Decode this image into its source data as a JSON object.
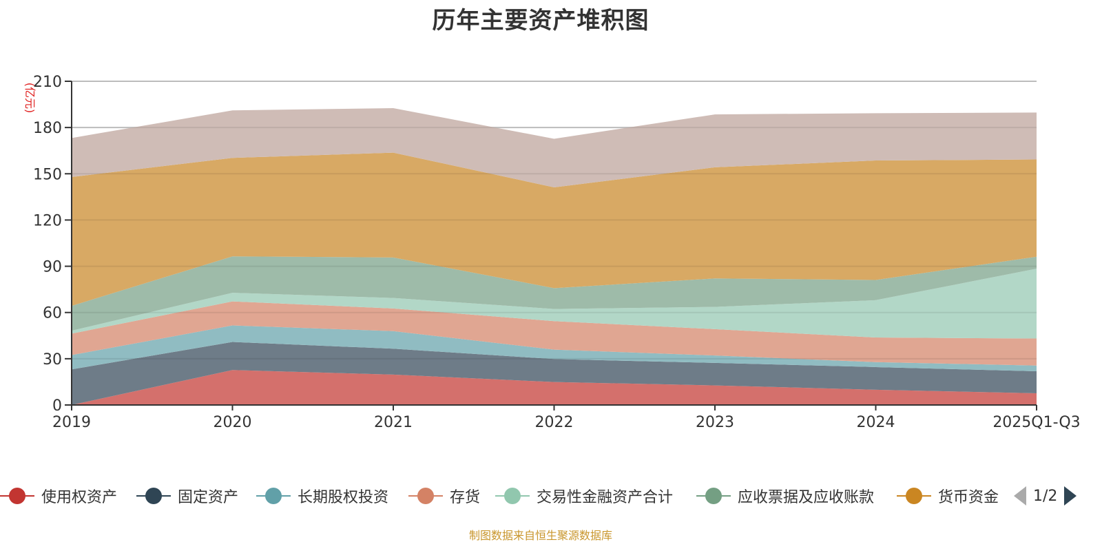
{
  "title": "历年主要资产堆积图",
  "source_note": "制图数据来自恒生聚源数据库",
  "legend": {
    "page_indicator": "1/2",
    "prev_label": "previous-page",
    "next_label": "next-page"
  },
  "chart_data": {
    "type": "area",
    "stacked": true,
    "title": "历年主要资产堆积图",
    "xlabel": "",
    "ylabel": "(亿元)",
    "ylim": [
      0,
      210
    ],
    "yticks": [
      0,
      30,
      60,
      90,
      120,
      150,
      180,
      210
    ],
    "grid": true,
    "legend_position": "bottom",
    "categories": [
      "2019",
      "2020",
      "2021",
      "2022",
      "2023",
      "2024",
      "2025Q1-Q3"
    ],
    "series": [
      {
        "name": "使用权资产",
        "color": "#c23531",
        "fill": "#d4706c",
        "values": [
          0,
          22.7,
          19.7,
          14.9,
          12.7,
          9.9,
          7.6
        ]
      },
      {
        "name": "固定资产",
        "color": "#2f4554",
        "fill": "#6e7c88",
        "values": [
          23.1,
          18.2,
          16.8,
          14.9,
          14.6,
          14.7,
          14.3
        ]
      },
      {
        "name": "长期股权投资",
        "color": "#61a0a8",
        "fill": "#90bcc2",
        "values": [
          9.3,
          10.7,
          11.4,
          6.1,
          4.8,
          3.2,
          3.7
        ]
      },
      {
        "name": "存货",
        "color": "#d48265",
        "fill": "#e0a692",
        "values": [
          13.9,
          15.6,
          14.7,
          18.5,
          17.1,
          16.0,
          17.5
        ]
      },
      {
        "name": "交易性金融资产合计",
        "color": "#91c7ae",
        "fill": "#b2d7c7",
        "values": [
          1.9,
          5.6,
          6.8,
          7.9,
          14.4,
          24.2,
          45.3
        ]
      },
      {
        "name": "应收票据及应收账款",
        "color": "#749f83",
        "fill": "#9ebba9",
        "values": [
          16.1,
          23.6,
          26.3,
          13.5,
          18.5,
          13.1,
          7.8
        ]
      },
      {
        "name": "货币资金",
        "color": "#ca8622",
        "fill": "#d8a964",
        "values": [
          83.6,
          63.9,
          68.0,
          65.4,
          72.1,
          77.5,
          63.1
        ]
      },
      {
        "name": "",
        "color": "#bda29a",
        "fill": "#cfbcb6",
        "legend_page": 2,
        "values": [
          25.3,
          30.8,
          28.9,
          31.5,
          34.3,
          30.7,
          30.4
        ]
      }
    ]
  }
}
